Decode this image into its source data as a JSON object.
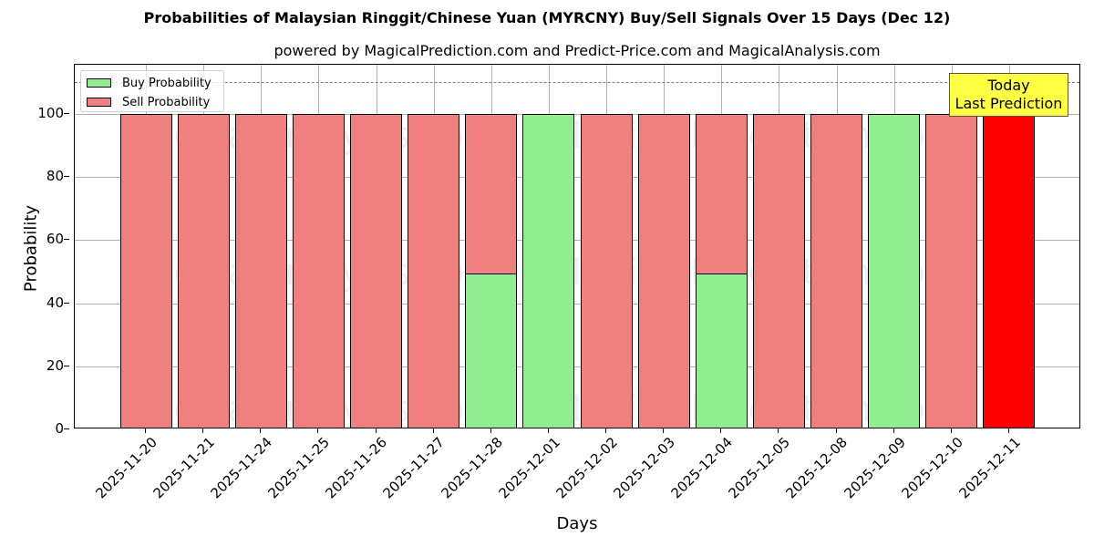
{
  "chart_data": {
    "type": "bar",
    "stacked": true,
    "title": "Probabilities of Malaysian Ringgit/Chinese Yuan (MYRCNY) Buy/Sell Signals Over 15 Days (Dec 12)",
    "subtitle": "powered by MagicalPrediction.com and Predict-Price.com and MagicalAnalysis.com",
    "xlabel": "Days",
    "ylabel": "Probability",
    "ylim": [
      0,
      115
    ],
    "yticks": [
      0,
      20,
      40,
      60,
      80,
      100
    ],
    "grid": true,
    "legend_position": "upper left",
    "reference_line": {
      "y": 110,
      "style": "dashed",
      "color": "#808080"
    },
    "categories": [
      "2025-11-20",
      "2025-11-21",
      "2025-11-24",
      "2025-11-25",
      "2025-11-26",
      "2025-11-27",
      "2025-11-28",
      "2025-12-01",
      "2025-12-02",
      "2025-12-03",
      "2025-12-04",
      "2025-12-05",
      "2025-12-08",
      "2025-12-09",
      "2025-12-10",
      "2025-12-11"
    ],
    "series": [
      {
        "name": "Buy Probability",
        "color": "#90ee90",
        "values": [
          0,
          0,
          0,
          0,
          0,
          0,
          49.5,
          100,
          0,
          0,
          49.5,
          0,
          0,
          100,
          0,
          0
        ]
      },
      {
        "name": "Sell Probability",
        "color": "#f08080",
        "values": [
          100,
          100,
          100,
          100,
          100,
          100,
          50.5,
          0,
          100,
          100,
          50.5,
          100,
          100,
          0,
          100,
          100
        ]
      }
    ],
    "highlight": {
      "category": "2025-12-11",
      "color": "#ff0000",
      "annotation": "Today\nLast Prediction"
    },
    "annotation": {
      "line1": "Today",
      "line2": "Last Prediction",
      "background": "#ffff44"
    },
    "watermarks": [
      "MagicalAnalysis.com",
      "MagicalPrediction.com"
    ]
  },
  "legend": {
    "buy_label": "Buy Probability",
    "sell_label": "Sell Probability"
  }
}
